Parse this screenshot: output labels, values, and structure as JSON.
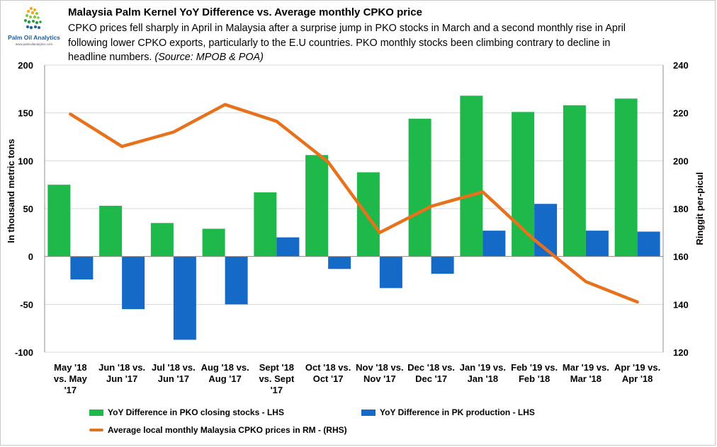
{
  "logo": {
    "name": "Palm Oil Analytics",
    "url": "www.palmoilanalytics.com",
    "icon": "palm-dots-icon"
  },
  "header": {
    "title": "Malaysia Palm Kernel YoY Difference vs. Average monthly CPKO price",
    "subtitle": "CPKO prices fell sharply in April in Malaysia after a surprise jump in PKO stocks in March and a second monthly rise in April following lower CPKO exports, particularly to the E.U countries. PKO monthly stocks been climbing contrary to decline in headline numbers.",
    "source": "(Source: MPOB & POA)"
  },
  "chart_data": {
    "type": "bar",
    "title": "Malaysia Palm Kernel YoY Difference vs. Average monthly CPKO price",
    "categories": [
      [
        "May '18",
        "vs. May",
        "'17"
      ],
      [
        "Jun '18 vs.",
        "Jun '17"
      ],
      [
        "Jul '18 vs.",
        "Jun '17"
      ],
      [
        "Aug '18 vs.",
        "Aug '17"
      ],
      [
        "Sept '18",
        "vs. Sept",
        "'17"
      ],
      [
        "Oct '18 vs.",
        "Oct '17"
      ],
      [
        "Nov '18 vs.",
        "Nov '17"
      ],
      [
        "Dec '18 vs.",
        "Dec '17"
      ],
      [
        "Jan '19 vs.",
        "Jan '18"
      ],
      [
        "Feb '19 vs.",
        "Feb '18"
      ],
      [
        "Mar '19 vs.",
        "Mar '18"
      ],
      [
        "Apr '19 vs.",
        "Apr '18"
      ]
    ],
    "series": [
      {
        "name": "YoY Difference in PKO closing stocks - LHS",
        "kind": "bar",
        "axis": "left",
        "color": "#1fb84a",
        "values": [
          75,
          53,
          35,
          29,
          67,
          106,
          88,
          144,
          168,
          151,
          158,
          165
        ]
      },
      {
        "name": "YoY Difference in PK production - LHS",
        "kind": "bar",
        "axis": "left",
        "color": "#1569c7",
        "values": [
          -24,
          -55,
          -87,
          -50,
          20,
          -13,
          -33,
          -18,
          27,
          55,
          27,
          26
        ]
      },
      {
        "name": "Average local monthly Malaysia CPKO prices in RM - (RHS)",
        "kind": "line",
        "axis": "right",
        "color": "#e8711c",
        "values": [
          219.5,
          206,
          212,
          223.5,
          216.5,
          199.5,
          170,
          181,
          187,
          167,
          149.5,
          141
        ]
      }
    ],
    "ylabel": "In thousand metric tons",
    "y2label": "Ringgit per-picul",
    "ylim": [
      -100,
      200
    ],
    "yticks": [
      -100,
      -50,
      0,
      50,
      100,
      150,
      200
    ],
    "y2lim": [
      120,
      240
    ],
    "y2ticks": [
      120,
      140,
      160,
      180,
      200,
      220,
      240
    ],
    "grid": true,
    "legend_position": "bottom"
  }
}
